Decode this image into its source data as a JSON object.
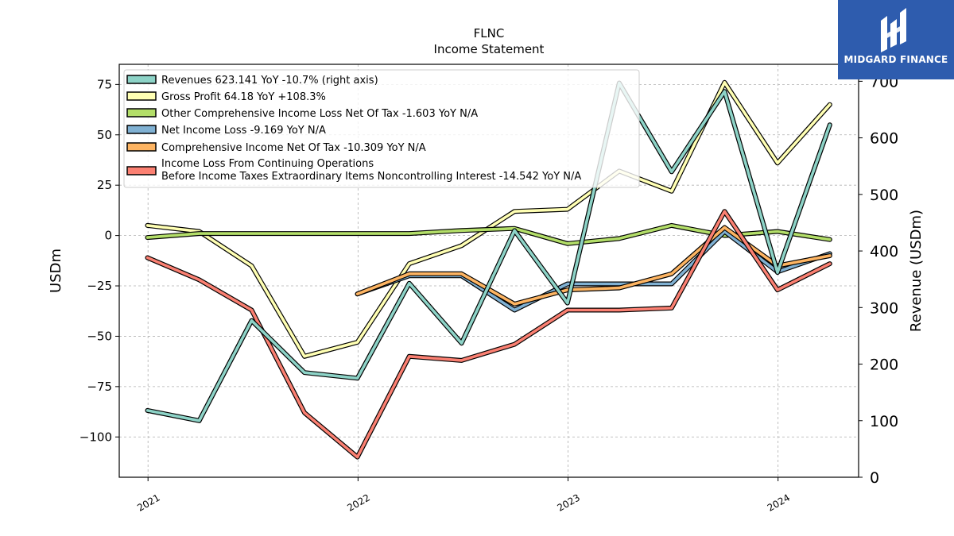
{
  "chart_data": {
    "type": "line",
    "title": "FLNC",
    "subtitle": "Income Statement",
    "ylabel": "USDm",
    "ylabel_right": "Revenue (USDm)",
    "ylim": [
      -120,
      85
    ],
    "ylim_right": [
      0,
      730
    ],
    "yticks": [
      75,
      50,
      25,
      0,
      -25,
      -50,
      -75,
      -100
    ],
    "yticks_right": [
      0,
      100,
      200,
      300,
      400,
      500,
      600,
      700
    ],
    "xlim": [
      "2020-11-12",
      "2024-05-20"
    ],
    "xticks": [
      "2021",
      "2022",
      "2023",
      "2024"
    ],
    "grid": true,
    "legend_position": "top-left",
    "x": [
      "2020-12-31",
      "2021-03-31",
      "2021-06-30",
      "2021-09-30",
      "2021-12-31",
      "2022-03-31",
      "2022-06-30",
      "2022-09-30",
      "2022-12-31",
      "2023-03-31",
      "2023-06-30",
      "2023-09-30",
      "2023-12-31",
      "2024-03-31"
    ],
    "series": [
      {
        "name": "Gross Profit",
        "legend": "Gross Profit  64.18 YoY +108.3%",
        "axis": "left",
        "color": "#ffffb3",
        "values": [
          5,
          2,
          -15,
          -60,
          -53,
          -14,
          -5,
          12,
          13,
          32,
          22,
          76,
          36,
          65
        ]
      },
      {
        "name": "Other Comprehensive Income Loss Net Of Tax",
        "legend": "Other Comprehensive Income Loss Net Of Tax  -1.603 YoY N/A",
        "axis": "left",
        "color": "#b3de69",
        "values": [
          -1,
          1,
          1,
          1,
          1,
          1,
          2.5,
          3.5,
          -4,
          -1.5,
          5,
          0,
          2,
          -2
        ]
      },
      {
        "name": "Net Income Loss",
        "legend": "Net Income Loss  -9.169 YoY N/A",
        "axis": "left",
        "color": "#80b1d3",
        "values": [
          null,
          null,
          null,
          null,
          -29,
          -20,
          -20,
          -37,
          -24,
          -24,
          -24,
          2,
          -18,
          -9
        ]
      },
      {
        "name": "Comprehensive Income Net Of Tax",
        "legend": "Comprehensive Income Net Of Tax  -10.309 YoY N/A",
        "axis": "left",
        "color": "#fdb462",
        "values": [
          null,
          null,
          null,
          null,
          -29,
          -19,
          -19,
          -34,
          -27,
          -26,
          -19,
          4,
          -15,
          -10
        ]
      },
      {
        "name": "Income Loss From Continuing Operations Before Income Taxes Extraordinary Items Noncontrolling Interest",
        "legend_line1": "Income Loss From Continuing Operations",
        "legend_line2": "Before Income Taxes Extraordinary Items Noncontrolling Interest  -14.542 YoY N/A",
        "axis": "left",
        "color": "#fb8072",
        "values": [
          -11,
          -22,
          -37,
          -88,
          -110,
          -60,
          -62,
          -54,
          -37,
          -37,
          -36,
          12,
          -27,
          -14
        ]
      },
      {
        "name": "Revenues",
        "legend": "Revenues  623.141 YoY -10.7% (right axis)",
        "axis": "right",
        "color": "#8dd3c7",
        "values": [
          118,
          100,
          277,
          185,
          175,
          343,
          237,
          436,
          308,
          697,
          540,
          682,
          362,
          623
        ]
      }
    ]
  },
  "logo": {
    "text": "MIDGARD FINANCE"
  }
}
